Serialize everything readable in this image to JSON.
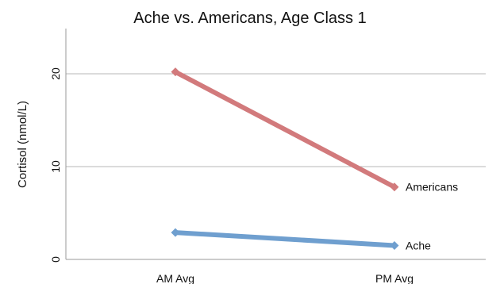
{
  "chart_data": {
    "type": "line",
    "title": "Ache vs. Americans, Age Class 1",
    "xlabel": "",
    "ylabel": "Cortisol (nmol/L)",
    "categories": [
      "AM Avg",
      "PM Avg"
    ],
    "ylim": [
      0,
      25
    ],
    "yticks": [
      0,
      10,
      20
    ],
    "grid": true,
    "series": [
      {
        "name": "Americans",
        "values": [
          20.2,
          7.8
        ],
        "color": "#d27a7c"
      },
      {
        "name": "Ache",
        "values": [
          2.9,
          1.5
        ],
        "color": "#6f9fcf"
      }
    ]
  }
}
